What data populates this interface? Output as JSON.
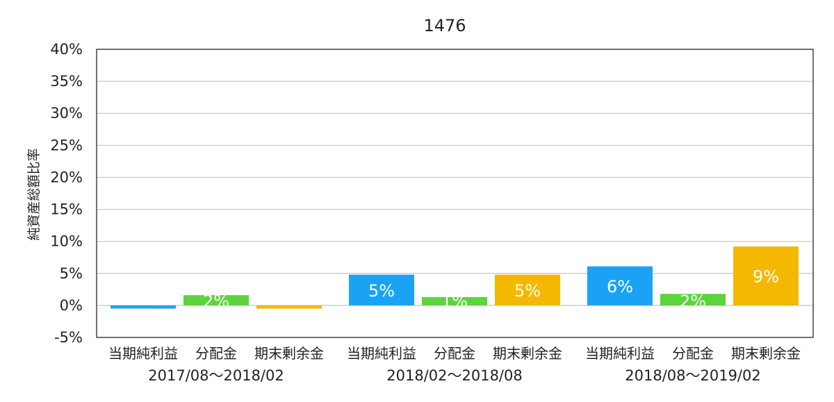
{
  "chart_data": {
    "type": "bar",
    "title": "1476",
    "ylabel": "純資産総額比率",
    "xlabel": "",
    "ylim": [
      -5,
      40
    ],
    "yticks": [
      "-5%",
      "0%",
      "5%",
      "10%",
      "15%",
      "20%",
      "25%",
      "30%",
      "35%",
      "40%"
    ],
    "grid": true,
    "legend": "none",
    "groups": [
      {
        "label": "2017/08〜2018/02",
        "bars": [
          {
            "category": "当期純利益",
            "value": -0.5,
            "label": "",
            "color": "#1aa3f5"
          },
          {
            "category": "分配金",
            "value": 1.6,
            "label": "2%",
            "color": "#5ad53c"
          },
          {
            "category": "期末剰余金",
            "value": -0.5,
            "label": "",
            "color": "#f5b800"
          }
        ]
      },
      {
        "label": "2018/02〜2018/08",
        "bars": [
          {
            "category": "当期純利益",
            "value": 4.8,
            "label": "5%",
            "color": "#1aa3f5"
          },
          {
            "category": "分配金",
            "value": 1.3,
            "label": "1%",
            "color": "#5ad53c"
          },
          {
            "category": "期末剰余金",
            "value": 4.8,
            "label": "5%",
            "color": "#f5b800"
          }
        ]
      },
      {
        "label": "2018/08〜2019/02",
        "bars": [
          {
            "category": "当期純利益",
            "value": 6.1,
            "label": "6%",
            "color": "#1aa3f5"
          },
          {
            "category": "分配金",
            "value": 1.8,
            "label": "2%",
            "color": "#5ad53c"
          },
          {
            "category": "期末剰余金",
            "value": 9.2,
            "label": "9%",
            "color": "#f5b800"
          }
        ]
      }
    ]
  }
}
